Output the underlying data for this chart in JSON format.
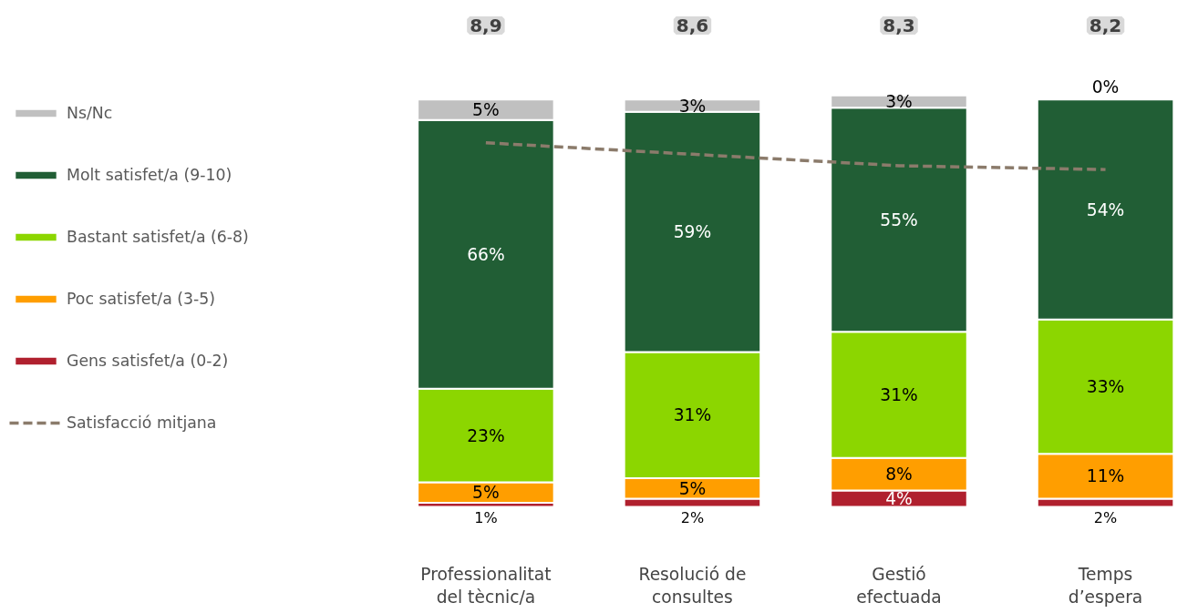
{
  "chart_data": {
    "type": "bar",
    "stacked": true,
    "legend": "left",
    "categories": [
      "Professionalitat\ndel tècnic/a",
      "Resolució de\nconsultes",
      "Gestió\nefectuada",
      "Temps\nd’espera"
    ],
    "series": [
      {
        "name": "Gens satisfet/a (0-2)",
        "color": "#b0202e",
        "values": [
          1,
          2,
          4,
          2
        ],
        "value_labels": [
          "1%",
          "2%",
          "4%",
          "2%"
        ]
      },
      {
        "name": "Poc satisfet/a (3-5)",
        "color": "#ff9e00",
        "values": [
          5,
          5,
          8,
          11
        ],
        "value_labels": [
          "5%",
          "5%",
          "8%",
          "11%"
        ]
      },
      {
        "name": "Bastant satisfet/a (6-8)",
        "color": "#8cd600",
        "values": [
          23,
          31,
          31,
          33
        ],
        "value_labels": [
          "23%",
          "31%",
          "31%",
          "33%"
        ]
      },
      {
        "name": "Molt satisfet/a (9-10)",
        "color": "#215e35",
        "values": [
          66,
          59,
          55,
          54
        ],
        "value_labels": [
          "66%",
          "59%",
          "55%",
          "54%"
        ]
      },
      {
        "name": "Ns/Nc",
        "color": "#c0c0c0",
        "values": [
          5,
          3,
          3,
          0
        ],
        "value_labels": [
          "5%",
          "3%",
          "3%",
          "0%"
        ]
      },
      {
        "name": "Satisfacció mitjana",
        "type": "line",
        "axis": "y2",
        "line_style": "dashed",
        "color": "#8b7b6b",
        "values": [
          8.9,
          8.6,
          8.3,
          8.2
        ],
        "value_labels": [
          "8,9",
          "8,6",
          "8,3",
          "8,2"
        ]
      }
    ]
  }
}
